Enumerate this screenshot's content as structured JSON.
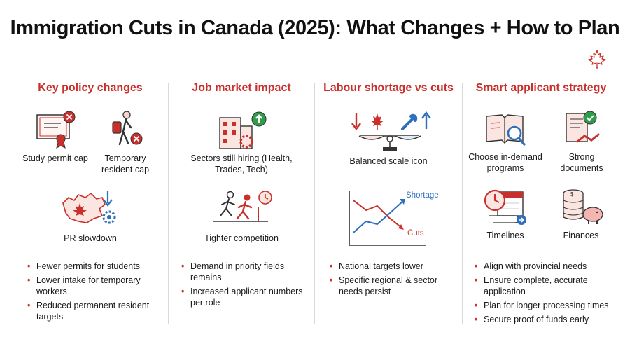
{
  "title": "Immigration Cuts in Canada (2025): What Changes + How to Plan",
  "colors": {
    "accent": "#c9302c",
    "blue": "#2e6fbd",
    "green": "#2e9d4a"
  },
  "columns": [
    {
      "heading": "Key policy changes",
      "items": [
        {
          "icon": "certificate-icon",
          "caption": "Study permit cap"
        },
        {
          "icon": "traveler-icon",
          "caption": "Temporary resident cap"
        },
        {
          "icon": "canada-map-icon",
          "caption": "PR slowdown"
        }
      ],
      "bullets": [
        "Fewer permits for students",
        "Lower intake for temporary workers",
        "Reduced permanent resident targets"
      ]
    },
    {
      "heading": "Job market impact",
      "items": [
        {
          "icon": "building-icon",
          "caption": "Sectors still hiring (Health, Trades, Tech)"
        },
        {
          "icon": "runners-icon",
          "caption": "Tighter competition"
        }
      ],
      "bullets": [
        "Demand in priority fields remains",
        "Increased applicant numbers per role"
      ]
    },
    {
      "heading": "Labour shortage vs cuts",
      "items": [
        {
          "icon": "balance-scale-icon",
          "caption": "Balanced scale icon"
        }
      ],
      "chart_labels": {
        "up": "Shortage",
        "down": "Cuts"
      },
      "bullets": [
        "National targets lower",
        "Specific regional & sector needs persist"
      ]
    },
    {
      "heading": "Smart applicant strategy",
      "items": [
        {
          "icon": "book-search-icon",
          "caption": "Choose in-demand programs"
        },
        {
          "icon": "documents-check-icon",
          "caption": "Strong documents"
        },
        {
          "icon": "calendar-clock-icon",
          "caption": "Timelines"
        },
        {
          "icon": "coins-piggybank-icon",
          "caption": "Finances"
        }
      ],
      "bullets": [
        "Align with provincial needs",
        "Ensure complete, accurate application",
        "Plan for longer processing times",
        "Secure proof of funds early"
      ]
    }
  ]
}
